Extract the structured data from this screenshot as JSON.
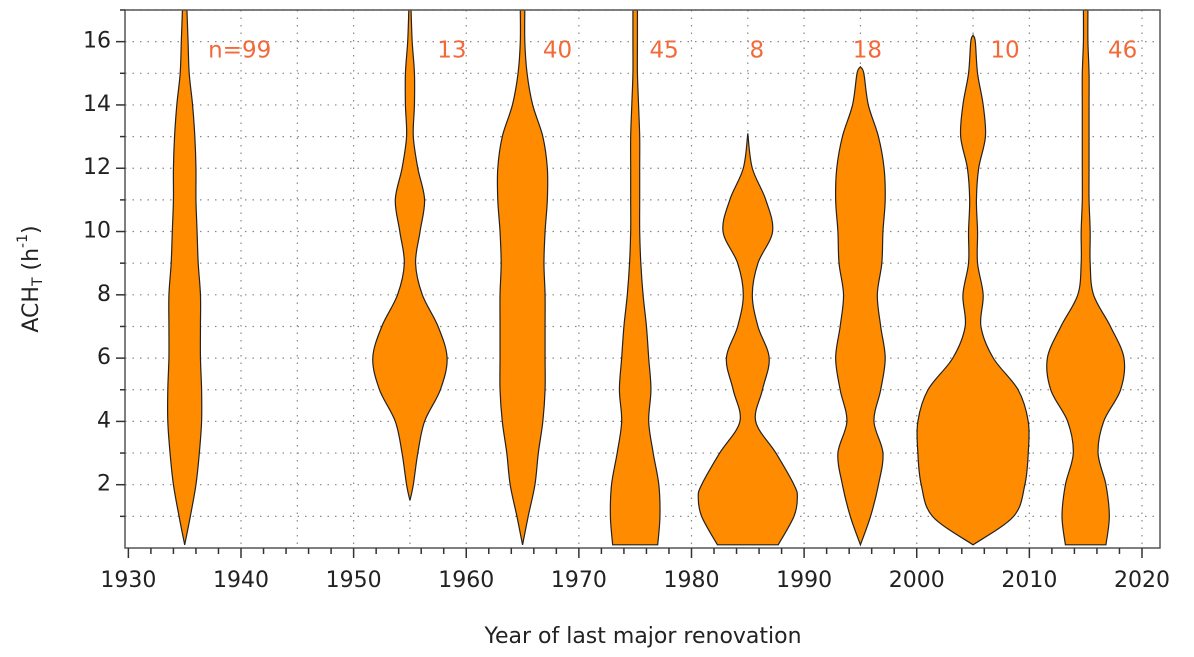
{
  "chart_data": {
    "type": "violin",
    "xlabel": "Year of last major renovation",
    "ylabel": [
      "ACH",
      "T",
      " (h",
      "-1",
      ")"
    ],
    "xlim": [
      1929.7,
      2021.6
    ],
    "ylim": [
      0,
      17
    ],
    "xticks": [
      1930,
      1940,
      1950,
      1960,
      1970,
      1980,
      1990,
      2000,
      2010,
      2020
    ],
    "xminorticks": [
      1932,
      1934,
      1936,
      1938,
      1942,
      1944,
      1946,
      1948,
      1952,
      1954,
      1956,
      1958,
      1962,
      1964,
      1966,
      1968,
      1972,
      1974,
      1976,
      1978,
      1982,
      1984,
      1986,
      1988,
      1992,
      1994,
      1996,
      1998,
      2002,
      2004,
      2006,
      2008,
      2012,
      2014,
      2016,
      2018
    ],
    "xgrid": [
      1935,
      1940,
      1945,
      1950,
      1955,
      1960,
      1965,
      1970,
      1975,
      1980,
      1985,
      1990,
      1995,
      2000,
      2005,
      2010,
      2015,
      2020
    ],
    "yticks": [
      2,
      4,
      6,
      8,
      10,
      12,
      14,
      16
    ],
    "yminorticks": [
      1,
      3,
      5,
      7,
      9,
      11,
      13,
      15,
      17
    ],
    "color": "#ff8c00",
    "label_color": "#f26a3a",
    "violins": [
      {
        "x": 1935,
        "label": "n=99",
        "y": [
          0.1,
          1,
          2,
          3,
          4,
          5,
          6,
          7,
          8,
          9,
          10,
          11,
          12,
          13,
          14,
          15,
          16,
          17
        ],
        "widths": [
          0,
          0.5,
          1.0,
          1.3,
          1.5,
          1.5,
          1.4,
          1.4,
          1.4,
          1.2,
          1.1,
          1.0,
          1.0,
          0.9,
          0.7,
          0.4,
          0.3,
          0.2
        ]
      },
      {
        "x": 1955,
        "label": "13",
        "y": [
          1.5,
          2,
          3,
          4,
          5,
          6,
          7,
          8,
          9,
          10,
          11,
          12,
          13,
          14,
          15,
          16,
          17
        ],
        "widths": [
          0,
          0.3,
          0.7,
          1.3,
          2.7,
          3.3,
          2.5,
          1.1,
          0.5,
          0.9,
          1.3,
          0.7,
          0.3,
          0.4,
          0.4,
          0.2,
          0.1
        ]
      },
      {
        "x": 1965,
        "label": "40",
        "y": [
          0.1,
          1,
          2,
          3,
          4,
          5,
          6,
          7,
          8,
          9,
          10,
          11,
          12,
          13,
          14,
          15,
          16,
          17
        ],
        "widths": [
          0,
          0.5,
          1.1,
          1.4,
          1.8,
          2.0,
          2.0,
          2.0,
          2.0,
          1.9,
          2.0,
          2.2,
          2.2,
          1.8,
          0.9,
          0.4,
          0.2,
          0.2
        ]
      },
      {
        "x": 1975,
        "label": "45",
        "y": [
          0.1,
          1,
          2,
          3,
          4,
          5,
          6,
          7,
          8,
          9,
          10,
          11,
          12,
          13,
          14,
          15,
          16,
          17
        ],
        "widths": [
          2.0,
          2.2,
          2.1,
          1.6,
          1.2,
          1.4,
          1.2,
          1.0,
          0.7,
          0.5,
          0.4,
          0.4,
          0.4,
          0.4,
          0.3,
          0.2,
          0.2,
          0.2
        ]
      },
      {
        "x": 1985,
        "label": "8",
        "y": [
          0.1,
          1,
          1.6,
          2,
          3,
          4,
          5,
          6,
          7,
          8,
          9,
          10,
          11,
          12,
          13.1
        ],
        "widths": [
          2.7,
          4.1,
          4.4,
          4.1,
          2.5,
          0.7,
          1.3,
          1.9,
          0.9,
          0.4,
          0.9,
          2.2,
          1.6,
          0.4,
          0
        ]
      },
      {
        "x": 1995,
        "label": "18",
        "y": [
          0.1,
          1,
          2,
          3,
          4,
          5,
          6,
          7,
          8,
          9,
          10,
          11,
          12,
          13,
          14,
          15,
          15.2
        ],
        "widths": [
          0,
          0.9,
          1.6,
          2.0,
          1.2,
          1.8,
          2.2,
          1.8,
          1.5,
          1.9,
          2.0,
          2.2,
          2.1,
          1.6,
          0.7,
          0.3,
          0
        ]
      },
      {
        "x": 2005,
        "label": "10",
        "y": [
          0.1,
          1,
          2,
          3,
          4,
          5,
          6,
          7,
          8,
          9,
          10,
          11,
          12,
          13,
          14,
          15,
          16,
          16.2
        ],
        "widths": [
          0,
          3.6,
          4.6,
          4.9,
          4.9,
          4.0,
          1.8,
          0.7,
          0.9,
          0.4,
          0.4,
          0.3,
          0.5,
          1.1,
          0.9,
          0.4,
          0.2,
          0
        ]
      },
      {
        "x": 2015,
        "label": "46",
        "y": [
          0.1,
          1,
          2,
          3,
          4,
          5,
          6,
          7,
          8,
          9,
          10,
          11,
          12,
          13,
          14,
          15,
          16,
          17
        ],
        "widths": [
          1.8,
          2.1,
          1.8,
          1.1,
          1.6,
          3.1,
          3.4,
          2.2,
          0.7,
          0.4,
          0.4,
          0.3,
          0.3,
          0.3,
          0.3,
          0.3,
          0.2,
          0.2
        ]
      }
    ]
  }
}
